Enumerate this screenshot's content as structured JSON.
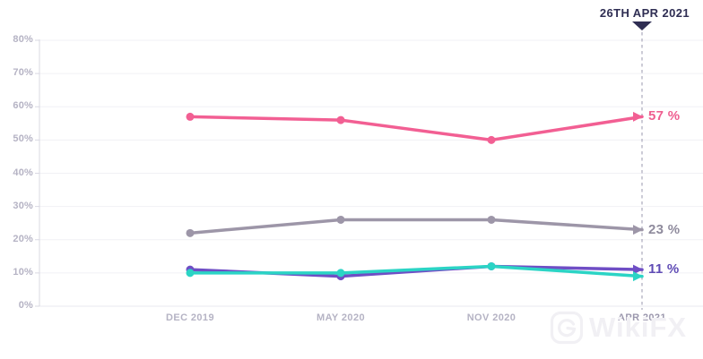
{
  "annotation": {
    "date_label": "26TH APR 2021"
  },
  "watermark": {
    "brand": "WikiFX"
  },
  "chart_data": {
    "type": "line",
    "title": "",
    "xlabel": "",
    "ylabel": "",
    "x_labels": [
      "DEC 2019",
      "MAY 2020",
      "NOV 2020",
      "APR 2021"
    ],
    "y_ticks": [
      0,
      10,
      20,
      30,
      40,
      50,
      60,
      70,
      80
    ],
    "y_tick_suffix": "%",
    "ylim": [
      0,
      80
    ],
    "grid": "horizontal",
    "legend": "none",
    "annotation_x_index": 3,
    "series": [
      {
        "name": "pink",
        "color": "#f25f93",
        "values": [
          57,
          56,
          50,
          57
        ],
        "end_label": "57 %",
        "end_label_color": "#ef5f90"
      },
      {
        "name": "gray",
        "color": "#9d96a8",
        "values": [
          22,
          26,
          26,
          23
        ],
        "end_label": "23 %",
        "end_label_color": "#8f8b9d"
      },
      {
        "name": "purple",
        "color": "#6f4ec5",
        "values": [
          11,
          9,
          12,
          11
        ],
        "end_label": "11 %",
        "end_label_color": "#5f4bb5"
      },
      {
        "name": "teal",
        "color": "#2bd4c5",
        "values": [
          10,
          10,
          12,
          9
        ],
        "end_label": "",
        "end_label_color": ""
      }
    ]
  },
  "colors": {
    "grid_line": "#f1f0f5",
    "zero_line": "#e9e8ef",
    "axis_line": "#d9d8e2",
    "dashed_line": "#aaa9bc",
    "annotation": "#2f2e53"
  }
}
